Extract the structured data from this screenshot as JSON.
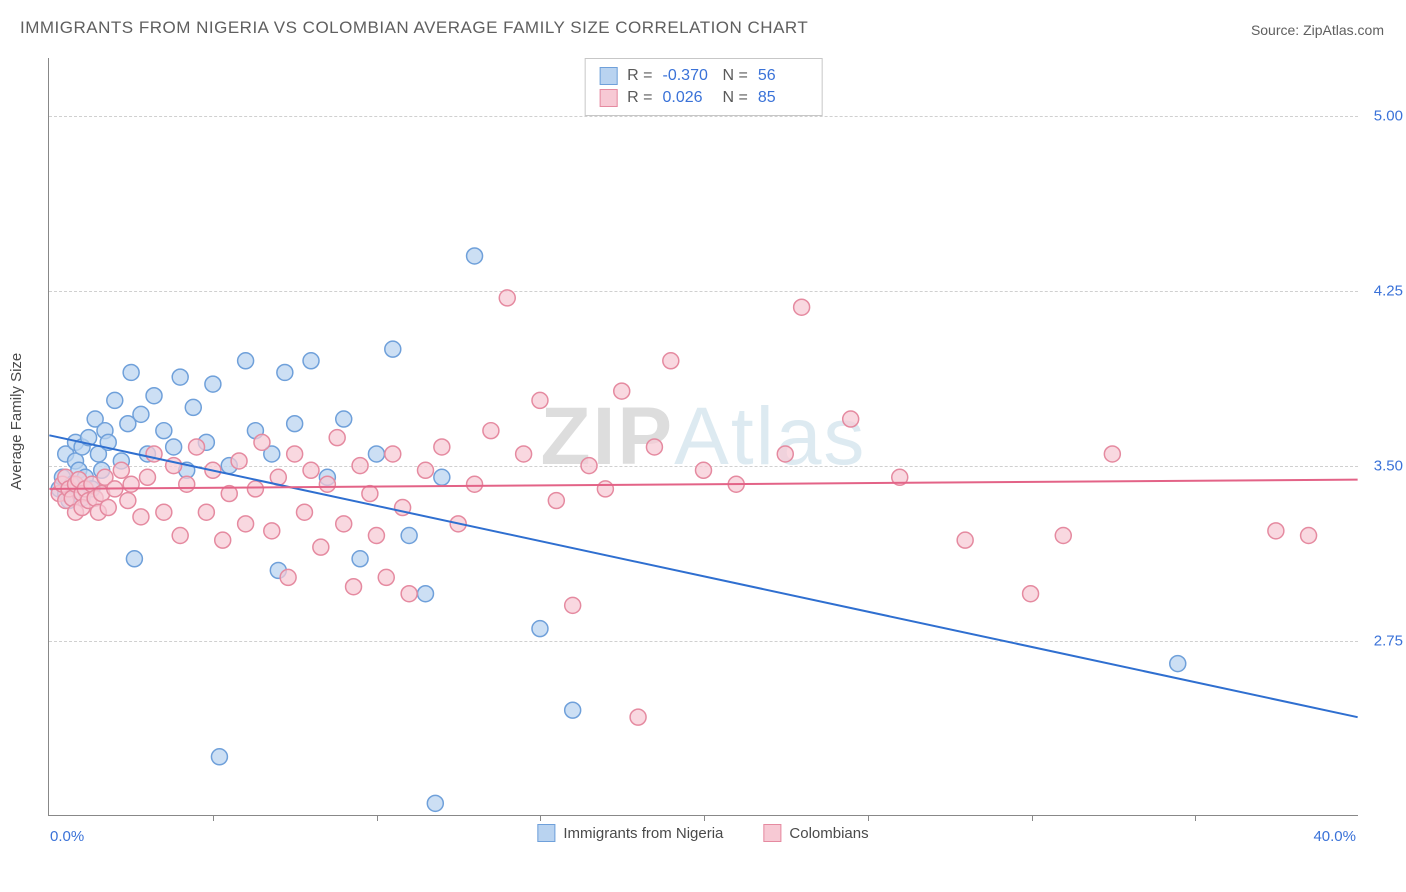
{
  "title": "IMMIGRANTS FROM NIGERIA VS COLOMBIAN AVERAGE FAMILY SIZE CORRELATION CHART",
  "source": "Source: ZipAtlas.com",
  "y_axis_label": "Average Family Size",
  "watermark": {
    "part1": "ZIP",
    "part2": "Atlas"
  },
  "chart": {
    "type": "scatter",
    "background_color": "#ffffff",
    "grid_color": "#d0d0d0",
    "axis_color": "#888888",
    "xlim": [
      0,
      40
    ],
    "ylim": [
      2.0,
      5.25
    ],
    "x_start_label": "0.0%",
    "x_end_label": "40.0%",
    "x_ticks_pct": [
      5,
      10,
      15,
      20,
      25,
      30,
      35
    ],
    "y_ticks": [
      {
        "value": 5.0,
        "label": "5.00"
      },
      {
        "value": 4.25,
        "label": "4.25"
      },
      {
        "value": 3.5,
        "label": "3.50"
      },
      {
        "value": 2.75,
        "label": "2.75"
      }
    ],
    "marker_radius": 8,
    "marker_stroke_width": 1.5,
    "trend_line_width": 2,
    "series": [
      {
        "id": "nigeria",
        "label": "Immigrants from Nigeria",
        "fill": "#b9d3f0",
        "stroke": "#6fa0da",
        "opacity": 0.72,
        "R": "-0.370",
        "N": "56",
        "trend": {
          "x1": 0,
          "y1": 3.63,
          "x2": 40,
          "y2": 2.42,
          "color": "#2f6fd0"
        },
        "points": [
          [
            0.3,
            3.4
          ],
          [
            0.4,
            3.45
          ],
          [
            0.5,
            3.38
          ],
          [
            0.5,
            3.55
          ],
          [
            0.6,
            3.35
          ],
          [
            0.7,
            3.42
          ],
          [
            0.8,
            3.52
          ],
          [
            0.8,
            3.6
          ],
          [
            0.9,
            3.48
          ],
          [
            1.0,
            3.36
          ],
          [
            1.0,
            3.58
          ],
          [
            1.1,
            3.45
          ],
          [
            1.2,
            3.62
          ],
          [
            1.3,
            3.4
          ],
          [
            1.4,
            3.7
          ],
          [
            1.5,
            3.55
          ],
          [
            1.6,
            3.48
          ],
          [
            1.7,
            3.65
          ],
          [
            1.8,
            3.6
          ],
          [
            2.0,
            3.78
          ],
          [
            2.2,
            3.52
          ],
          [
            2.4,
            3.68
          ],
          [
            2.5,
            3.9
          ],
          [
            2.6,
            3.1
          ],
          [
            2.8,
            3.72
          ],
          [
            3.0,
            3.55
          ],
          [
            3.2,
            3.8
          ],
          [
            3.5,
            3.65
          ],
          [
            3.8,
            3.58
          ],
          [
            4.0,
            3.88
          ],
          [
            4.2,
            3.48
          ],
          [
            4.4,
            3.75
          ],
          [
            4.8,
            3.6
          ],
          [
            5.0,
            3.85
          ],
          [
            5.5,
            3.5
          ],
          [
            5.2,
            2.25
          ],
          [
            6.0,
            3.95
          ],
          [
            6.3,
            3.65
          ],
          [
            6.8,
            3.55
          ],
          [
            7.0,
            3.05
          ],
          [
            7.2,
            3.9
          ],
          [
            7.5,
            3.68
          ],
          [
            8.0,
            3.95
          ],
          [
            8.5,
            3.45
          ],
          [
            9.0,
            3.7
          ],
          [
            9.5,
            3.1
          ],
          [
            10.0,
            3.55
          ],
          [
            10.5,
            4.0
          ],
          [
            11.0,
            3.2
          ],
          [
            11.5,
            2.95
          ],
          [
            11.8,
            2.05
          ],
          [
            12.0,
            3.45
          ],
          [
            13.0,
            4.4
          ],
          [
            15.0,
            2.8
          ],
          [
            16.0,
            2.45
          ],
          [
            34.5,
            2.65
          ]
        ]
      },
      {
        "id": "colombians",
        "label": "Colombians",
        "fill": "#f7c9d4",
        "stroke": "#e58aa0",
        "opacity": 0.72,
        "R": "0.026",
        "N": "85",
        "trend": {
          "x1": 0,
          "y1": 3.4,
          "x2": 40,
          "y2": 3.44,
          "color": "#e36387"
        },
        "points": [
          [
            0.3,
            3.38
          ],
          [
            0.4,
            3.42
          ],
          [
            0.5,
            3.35
          ],
          [
            0.5,
            3.45
          ],
          [
            0.6,
            3.4
          ],
          [
            0.7,
            3.36
          ],
          [
            0.8,
            3.42
          ],
          [
            0.8,
            3.3
          ],
          [
            0.9,
            3.44
          ],
          [
            1.0,
            3.38
          ],
          [
            1.0,
            3.32
          ],
          [
            1.1,
            3.4
          ],
          [
            1.2,
            3.35
          ],
          [
            1.3,
            3.42
          ],
          [
            1.4,
            3.36
          ],
          [
            1.5,
            3.3
          ],
          [
            1.6,
            3.38
          ],
          [
            1.7,
            3.45
          ],
          [
            1.8,
            3.32
          ],
          [
            2.0,
            3.4
          ],
          [
            2.2,
            3.48
          ],
          [
            2.4,
            3.35
          ],
          [
            2.5,
            3.42
          ],
          [
            2.8,
            3.28
          ],
          [
            3.0,
            3.45
          ],
          [
            3.2,
            3.55
          ],
          [
            3.5,
            3.3
          ],
          [
            3.8,
            3.5
          ],
          [
            4.0,
            3.2
          ],
          [
            4.2,
            3.42
          ],
          [
            4.5,
            3.58
          ],
          [
            4.8,
            3.3
          ],
          [
            5.0,
            3.48
          ],
          [
            5.3,
            3.18
          ],
          [
            5.5,
            3.38
          ],
          [
            5.8,
            3.52
          ],
          [
            6.0,
            3.25
          ],
          [
            6.3,
            3.4
          ],
          [
            6.5,
            3.6
          ],
          [
            6.8,
            3.22
          ],
          [
            7.0,
            3.45
          ],
          [
            7.3,
            3.02
          ],
          [
            7.5,
            3.55
          ],
          [
            7.8,
            3.3
          ],
          [
            8.0,
            3.48
          ],
          [
            8.3,
            3.15
          ],
          [
            8.5,
            3.42
          ],
          [
            8.8,
            3.62
          ],
          [
            9.0,
            3.25
          ],
          [
            9.3,
            2.98
          ],
          [
            9.5,
            3.5
          ],
          [
            9.8,
            3.38
          ],
          [
            10.0,
            3.2
          ],
          [
            10.3,
            3.02
          ],
          [
            10.5,
            3.55
          ],
          [
            10.8,
            3.32
          ],
          [
            11.0,
            2.95
          ],
          [
            11.5,
            3.48
          ],
          [
            12.0,
            3.58
          ],
          [
            12.5,
            3.25
          ],
          [
            13.0,
            3.42
          ],
          [
            13.5,
            3.65
          ],
          [
            14.0,
            4.22
          ],
          [
            14.5,
            3.55
          ],
          [
            15.0,
            3.78
          ],
          [
            15.5,
            3.35
          ],
          [
            16.0,
            2.9
          ],
          [
            16.5,
            3.5
          ],
          [
            17.0,
            3.4
          ],
          [
            17.5,
            3.82
          ],
          [
            18.0,
            2.42
          ],
          [
            18.5,
            3.58
          ],
          [
            19.0,
            3.95
          ],
          [
            20.0,
            3.48
          ],
          [
            21.0,
            3.42
          ],
          [
            22.5,
            3.55
          ],
          [
            23.0,
            4.18
          ],
          [
            24.5,
            3.7
          ],
          [
            26.0,
            3.45
          ],
          [
            28.0,
            3.18
          ],
          [
            30.0,
            2.95
          ],
          [
            31.0,
            3.2
          ],
          [
            32.5,
            3.55
          ],
          [
            37.5,
            3.22
          ],
          [
            38.5,
            3.2
          ]
        ]
      }
    ],
    "stats_legend": {
      "label_color": "#5a5a5a",
      "value_color": "#3a72d8",
      "fontsize": 16
    },
    "bottom_legend_fontsize": 15,
    "axis_label_fontsize": 15,
    "title_fontsize": 17,
    "title_color": "#5f5f5f",
    "tick_label_color": "#3a72d8"
  }
}
